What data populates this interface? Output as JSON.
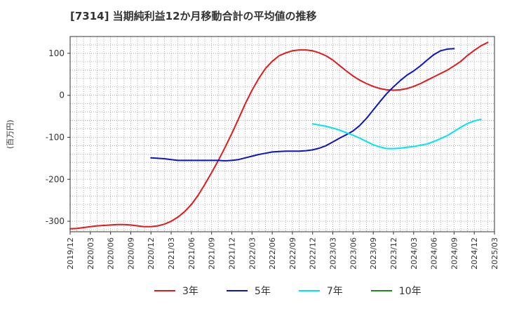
{
  "chart_data": {
    "type": "line",
    "title": "[7314]  当期純利益12か月移動合計の平均値の推移",
    "xlabel": "",
    "ylabel": "(百万円)",
    "ylim": [
      -325,
      140
    ],
    "yticks": [
      100,
      0,
      -100,
      -200,
      -300
    ],
    "x_categories": [
      "2019/12",
      "2020/03",
      "2020/06",
      "2020/09",
      "2020/12",
      "2021/03",
      "2021/06",
      "2021/09",
      "2021/12",
      "2022/03",
      "2022/06",
      "2022/09",
      "2022/12",
      "2023/03",
      "2023/06",
      "2023/09",
      "2023/12",
      "2024/03",
      "2024/06",
      "2024/09",
      "2024/12",
      "2025/03"
    ],
    "grid": true,
    "legend_position": "bottom",
    "series": [
      {
        "name": "3年",
        "color": "#e31a1c",
        "start_index": 0,
        "values": [
          -318,
          -317,
          -315,
          -313,
          -311,
          -310,
          -309,
          -308,
          -308,
          -309,
          -311,
          -313,
          -313,
          -311,
          -307,
          -300,
          -290,
          -277,
          -260,
          -238,
          -212,
          -184,
          -155,
          -124,
          -91,
          -56,
          -20,
          12,
          40,
          64,
          81,
          94,
          101,
          106,
          108,
          108,
          106,
          101,
          94,
          84,
          71,
          58,
          46,
          36,
          28,
          21,
          16,
          13,
          12,
          13,
          16,
          21,
          28,
          36,
          44,
          52,
          60,
          70,
          81,
          95,
          107,
          118,
          126
        ]
      },
      {
        "name": "5年",
        "color": "#0a14c8",
        "start_index": 12,
        "values": [
          -149,
          -150,
          -151,
          -153,
          -155,
          -155,
          -155,
          -155,
          -155,
          -155,
          -155,
          -156,
          -155,
          -153,
          -149,
          -145,
          -141,
          -138,
          -135,
          -134,
          -133,
          -133,
          -133,
          -132,
          -130,
          -126,
          -120,
          -111,
          -102,
          -94,
          -85,
          -72,
          -55,
          -35,
          -15,
          4,
          20,
          35,
          48,
          58,
          70,
          84,
          97,
          106,
          110,
          111
        ]
      },
      {
        "name": "7年",
        "color": "#00e5ee",
        "start_index": 36,
        "values": [
          -68,
          -71,
          -74,
          -78,
          -83,
          -89,
          -95,
          -102,
          -110,
          -118,
          -123,
          -127,
          -127,
          -126,
          -124,
          -122,
          -119,
          -116,
          -110,
          -103,
          -96,
          -86,
          -76,
          -67,
          -61,
          -57
        ]
      },
      {
        "name": "10年",
        "color": "#1a8c1a",
        "start_index": 0,
        "values": []
      }
    ]
  }
}
